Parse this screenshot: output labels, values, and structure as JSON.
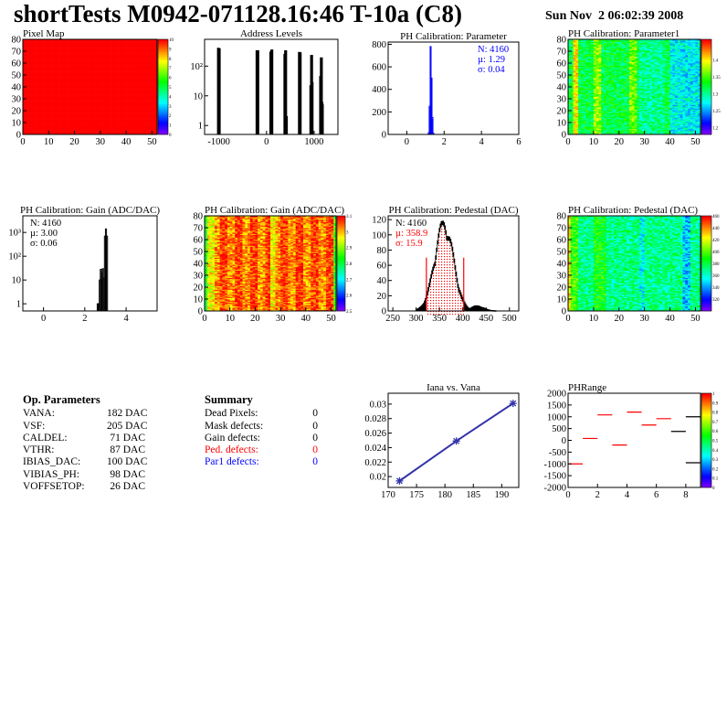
{
  "header": {
    "title": "shortTests M0942-071128.16:46 T-10a (C8)",
    "date": "Sun Nov  2 06:02:39 2008"
  },
  "palette": [
    "#7f00ff",
    "#0000ff",
    "#00ffff",
    "#00ff00",
    "#ffff00",
    "#ff0000"
  ],
  "op_parameters": {
    "title": "Op. Parameters",
    "rows": [
      {
        "name": "VANA:",
        "value": "182 DAC"
      },
      {
        "name": "VSF:",
        "value": "205 DAC"
      },
      {
        "name": "CALDEL:",
        "value": "71 DAC"
      },
      {
        "name": "VTHR:",
        "value": "87 DAC"
      },
      {
        "name": "IBIAS_DAC:",
        "value": "100 DAC"
      },
      {
        "name": "VIBIAS_PH:",
        "value": "98 DAC"
      },
      {
        "name": "VOFFSETOP:",
        "value": "26 DAC"
      }
    ]
  },
  "summary": {
    "title": "Summary",
    "rows": [
      {
        "name": "Dead Pixels:",
        "value": "0",
        "color": "#000000"
      },
      {
        "name": "Mask defects:",
        "value": "0",
        "color": "#000000"
      },
      {
        "name": "Gain defects:",
        "value": "0",
        "color": "#000000"
      },
      {
        "name": "Ped. defects:",
        "value": "0",
        "color": "#ff0000"
      },
      {
        "name": "Par1 defects:",
        "value": "0",
        "color": "#0000ff"
      }
    ]
  },
  "chart_data": [
    {
      "id": "pixelmap",
      "type": "heatmap",
      "title": "Pixel Map",
      "xlim": [
        0,
        52
      ],
      "ylim": [
        0,
        80
      ],
      "zlim": [
        0,
        10
      ],
      "xticks": [
        0,
        10,
        20,
        30,
        40,
        50
      ],
      "yticks": [
        0,
        10,
        20,
        30,
        40,
        50,
        60,
        70,
        80
      ],
      "zticks": [
        0,
        1,
        2,
        3,
        4,
        5,
        6,
        7,
        8,
        9,
        10
      ],
      "fill": 10
    },
    {
      "id": "address",
      "type": "bar",
      "title": "Address Levels",
      "xlim": [
        -1300,
        1500
      ],
      "ylim": [
        0.5,
        800
      ],
      "log_y": true,
      "xticks": [
        -1000,
        0,
        1000
      ],
      "yticks": [
        1,
        10,
        100
      ],
      "bins": [
        [
          -1010,
          400
        ],
        [
          -995,
          380
        ],
        [
          -200,
          330
        ],
        [
          -185,
          330
        ],
        [
          90,
          300
        ],
        [
          110,
          350
        ],
        [
          385,
          250
        ],
        [
          400,
          330
        ],
        [
          415,
          2
        ],
        [
          690,
          290
        ],
        [
          705,
          280
        ],
        [
          930,
          22
        ],
        [
          945,
          230
        ],
        [
          955,
          28
        ],
        [
          1135,
          45
        ],
        [
          1150,
          190
        ],
        [
          1162,
          6
        ],
        [
          1170,
          5
        ]
      ],
      "color": "#000000"
    },
    {
      "id": "phparam",
      "type": "bar",
      "title": "PH Calibration: Parameter",
      "xlim": [
        -1,
        6
      ],
      "ylim": [
        0,
        820
      ],
      "xticks": [
        0,
        2,
        4,
        6
      ],
      "yticks": [
        0,
        200,
        400,
        600,
        800
      ],
      "bins": [
        [
          1.15,
          15
        ],
        [
          1.2,
          250
        ],
        [
          1.25,
          780
        ],
        [
          1.3,
          500
        ],
        [
          1.35,
          150
        ],
        [
          1.4,
          10
        ]
      ],
      "bin_width": 0.05,
      "color": "#0000ff",
      "stats": {
        "n": "N: 4160",
        "mu": "µ: 1.29",
        "sigma": "σ: 0.04"
      }
    },
    {
      "id": "param1",
      "type": "heatmap",
      "title": "PH Calibration: Parameter1",
      "xlim": [
        0,
        52
      ],
      "ylim": [
        0,
        80
      ],
      "zlim": [
        1.18,
        1.46
      ],
      "xticks": [
        0,
        10,
        20,
        30,
        40,
        50
      ],
      "yticks": [
        0,
        10,
        20,
        30,
        40,
        50,
        60,
        70,
        80
      ],
      "zticks": [
        1.2,
        1.25,
        1.3,
        1.35,
        1.4
      ]
    },
    {
      "id": "gainhist",
      "type": "bar",
      "title": "PH Calibration: Gain (ADC/DAC)",
      "xlim": [
        -1,
        5.5
      ],
      "ylim": [
        0.5,
        5000
      ],
      "log_y": true,
      "xticks": [
        0,
        2,
        4
      ],
      "yticks": [
        1,
        10,
        100,
        1000
      ],
      "bins": [
        [
          2.6,
          1
        ],
        [
          2.65,
          1
        ],
        [
          2.7,
          10
        ],
        [
          2.75,
          28
        ],
        [
          2.8,
          20
        ],
        [
          2.85,
          30
        ],
        [
          2.9,
          12
        ],
        [
          2.95,
          700
        ],
        [
          3.0,
          1400
        ],
        [
          3.05,
          700
        ]
      ],
      "bin_width": 0.05,
      "color": "#000000",
      "stats": {
        "n": "N: 4160",
        "mu": "µ: 3.00",
        "sigma": "σ: 0.06"
      }
    },
    {
      "id": "gainmap",
      "type": "heatmap",
      "title": "PH Calibration: Gain (ADC/DAC)",
      "xlim": [
        0,
        52
      ],
      "ylim": [
        0,
        80
      ],
      "zlim": [
        2.5,
        3.1
      ],
      "xticks": [
        0,
        10,
        20,
        30,
        40,
        50
      ],
      "yticks": [
        0,
        10,
        20,
        30,
        40,
        50,
        60,
        70,
        80
      ],
      "zticks": [
        2.5,
        2.6,
        2.7,
        2.8,
        2.9,
        3,
        3.1
      ]
    },
    {
      "id": "pedhist",
      "type": "bar",
      "title": "PH Calibration: Pedestal (DAC)",
      "xlim": [
        240,
        520
      ],
      "ylim": [
        0,
        125
      ],
      "xticks": [
        250,
        300,
        350,
        400,
        450,
        500
      ],
      "yticks": [
        0,
        20,
        40,
        60,
        80,
        100,
        120
      ],
      "mean": 358.9,
      "sigma_value": 15.9,
      "peak": 110,
      "cut_lines": [
        322,
        402
      ],
      "cut_height": 70,
      "color": "#000000",
      "fill_color": "#ff0000",
      "stats": {
        "n": "N: 4160",
        "mu": "µ: 358.9",
        "sigma": "σ: 15.9"
      }
    },
    {
      "id": "pedmap",
      "type": "heatmap",
      "title": "PH Calibration: Pedestal (DAC)",
      "xlim": [
        0,
        52
      ],
      "ylim": [
        0,
        80
      ],
      "zlim": [
        300,
        460
      ],
      "xticks": [
        0,
        10,
        20,
        30,
        40,
        50
      ],
      "yticks": [
        0,
        10,
        20,
        30,
        40,
        50,
        60,
        70,
        80
      ],
      "zticks": [
        320,
        340,
        360,
        380,
        400,
        420,
        440,
        460
      ]
    },
    {
      "id": "iana",
      "type": "line",
      "title": "Iana vs. Vana",
      "xlim": [
        170,
        193
      ],
      "ylim": [
        0.0185,
        0.0315
      ],
      "xticks": [
        170,
        175,
        180,
        185,
        190
      ],
      "yticks": [
        0.02,
        0.022,
        0.024,
        0.026,
        0.028,
        0.03
      ],
      "x": [
        172,
        182,
        192
      ],
      "y": [
        0.0194,
        0.0249,
        0.0301
      ],
      "color": "#3333aa"
    },
    {
      "id": "phrange",
      "type": "heatmap",
      "title": "PHRange",
      "xlim": [
        0,
        9
      ],
      "ylim": [
        -2000,
        2000
      ],
      "zlim": [
        0,
        1
      ],
      "xticks": [
        0,
        2,
        4,
        6,
        8
      ],
      "yticks": [
        -2000,
        -1500,
        -1000,
        -500,
        0,
        500,
        1000,
        1500,
        2000
      ],
      "zticks": [
        0,
        0.1,
        0.2,
        0.3,
        0.4,
        0.5,
        0.6,
        0.7,
        0.8,
        0.9,
        1
      ],
      "segments": [
        [
          0,
          -1000,
          1
        ],
        [
          1,
          80,
          1
        ],
        [
          2,
          1080,
          1
        ],
        [
          3,
          -200,
          1
        ],
        [
          4,
          1200,
          1
        ],
        [
          5,
          650,
          1
        ],
        [
          6,
          920,
          1
        ],
        [
          7,
          380,
          0
        ],
        [
          8,
          1000,
          0
        ],
        [
          8,
          -950,
          0
        ]
      ]
    }
  ]
}
